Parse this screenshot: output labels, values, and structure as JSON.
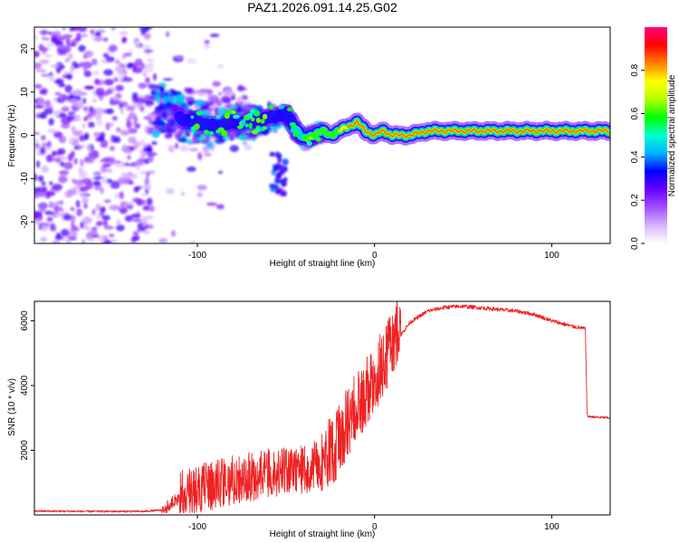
{
  "title": "PAZ1.2026.091.14.25.G02",
  "chart_data": [
    {
      "type": "heatmap",
      "title": "PAZ1.2026.091.14.25.G02",
      "xlabel": "Height of straight line (km)",
      "ylabel": "Frequency (Hz)",
      "xlim": [
        -192,
        133
      ],
      "ylim": [
        -25,
        25
      ],
      "xticks": [
        -100,
        0,
        100
      ],
      "yticks": [
        -20,
        -10,
        0,
        10,
        20
      ],
      "colorbar": {
        "label": "Normalized spectral amplitude",
        "range": [
          0.0,
          1.0
        ],
        "ticks": [
          0.0,
          0.2,
          0.4,
          0.6,
          0.8
        ],
        "colors": [
          "#ffffff",
          "#d9b3ff",
          "#a050ff",
          "#6a00ff",
          "#0000ff",
          "#00b4ff",
          "#00ffd0",
          "#00ff00",
          "#b4ff00",
          "#ffff00",
          "#ff8000",
          "#ff0000",
          "#ff0080"
        ]
      },
      "ridge": {
        "x": [
          -120,
          -110,
          -100,
          -90,
          -80,
          -70,
          -60,
          -50,
          -45,
          -40,
          -35,
          -30,
          -25,
          -20,
          -15,
          -10,
          -5,
          0,
          5,
          10,
          20,
          30,
          50,
          80,
          95,
          110,
          133
        ],
        "freq": [
          6,
          4,
          3,
          2,
          3,
          3,
          4,
          5,
          2,
          -1,
          0,
          1,
          0,
          1,
          2,
          3,
          1,
          0,
          1,
          0,
          0,
          1,
          1,
          1,
          1,
          1,
          1
        ]
      }
    },
    {
      "type": "line",
      "xlabel": "Height of straight line (km)",
      "ylabel": "SNR (10 * v/v)",
      "xlim": [
        -192,
        133
      ],
      "ylim": [
        0,
        6600
      ],
      "xticks": [
        -100,
        0,
        100
      ],
      "yticks": [
        2000,
        4000,
        6000
      ],
      "color": "#ee2222",
      "series": [
        {
          "name": "SNR",
          "x": [
            -192,
            -160,
            -130,
            -120,
            -110,
            -100,
            -90,
            -80,
            -70,
            -60,
            -50,
            -40,
            -30,
            -20,
            -15,
            -10,
            -5,
            0,
            5,
            10,
            20,
            30,
            40,
            50,
            60,
            70,
            80,
            90,
            100,
            110,
            119,
            120,
            125,
            133
          ],
          "y": [
            120,
            110,
            110,
            150,
            500,
            650,
            800,
            950,
            1050,
            1150,
            1200,
            1250,
            1500,
            2100,
            2700,
            3200,
            3600,
            4000,
            4500,
            5200,
            5950,
            6300,
            6420,
            6450,
            6400,
            6350,
            6300,
            6200,
            6000,
            5850,
            5750,
            3050,
            3020,
            3000
          ]
        }
      ]
    }
  ]
}
